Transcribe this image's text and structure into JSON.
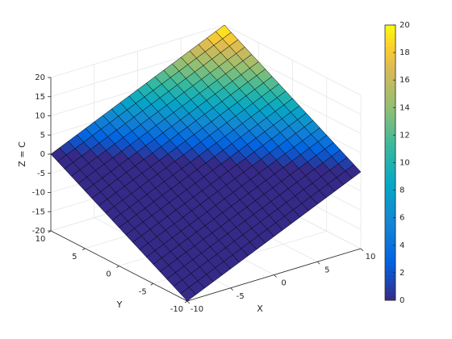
{
  "chart_data": {
    "type": "surface",
    "xlabel": "X",
    "ylabel": "Y",
    "zlabel": "Z = C",
    "x": [
      -10,
      -9,
      -8,
      -7,
      -6,
      -5,
      -4,
      -3,
      -2,
      -1,
      0,
      1,
      2,
      3,
      4,
      5,
      6,
      7,
      8,
      9,
      10
    ],
    "y": [
      -10,
      -9,
      -8,
      -7,
      -6,
      -5,
      -4,
      -3,
      -2,
      -1,
      0,
      1,
      2,
      3,
      4,
      5,
      6,
      7,
      8,
      9,
      10
    ],
    "z": [
      [
        -20,
        -19,
        -18,
        -17,
        -16,
        -15,
        -14,
        -13,
        -12,
        -11,
        -10,
        -9,
        -8,
        -7,
        -6,
        -5,
        -4,
        -3,
        -2,
        -1,
        0
      ],
      [
        -19,
        -18,
        -17,
        -16,
        -15,
        -14,
        -13,
        -12,
        -11,
        -10,
        -9,
        -8,
        -7,
        -6,
        -5,
        -4,
        -3,
        -2,
        -1,
        0,
        1
      ],
      [
        -18,
        -17,
        -16,
        -15,
        -14,
        -13,
        -12,
        -11,
        -10,
        -9,
        -8,
        -7,
        -6,
        -5,
        -4,
        -3,
        -2,
        -1,
        0,
        1,
        2
      ],
      [
        -17,
        -16,
        -15,
        -14,
        -13,
        -12,
        -11,
        -10,
        -9,
        -8,
        -7,
        -6,
        -5,
        -4,
        -3,
        -2,
        -1,
        0,
        1,
        2,
        3
      ],
      [
        -16,
        -15,
        -14,
        -13,
        -12,
        -11,
        -10,
        -9,
        -8,
        -7,
        -6,
        -5,
        -4,
        -3,
        -2,
        -1,
        0,
        1,
        2,
        3,
        4
      ],
      [
        -15,
        -14,
        -13,
        -12,
        -11,
        -10,
        -9,
        -8,
        -7,
        -6,
        -5,
        -4,
        -3,
        -2,
        -1,
        0,
        1,
        2,
        3,
        4,
        5
      ],
      [
        -14,
        -13,
        -12,
        -11,
        -10,
        -9,
        -8,
        -7,
        -6,
        -5,
        -4,
        -3,
        -2,
        -1,
        0,
        1,
        2,
        3,
        4,
        5,
        6
      ],
      [
        -13,
        -12,
        -11,
        -10,
        -9,
        -8,
        -7,
        -6,
        -5,
        -4,
        -3,
        -2,
        -1,
        0,
        1,
        2,
        3,
        4,
        5,
        6,
        7
      ],
      [
        -12,
        -11,
        -10,
        -9,
        -8,
        -7,
        -6,
        -5,
        -4,
        -3,
        -2,
        -1,
        0,
        1,
        2,
        3,
        4,
        5,
        6,
        7,
        8
      ],
      [
        -11,
        -10,
        -9,
        -8,
        -7,
        -6,
        -5,
        -4,
        -3,
        -2,
        -1,
        0,
        1,
        2,
        3,
        4,
        5,
        6,
        7,
        8,
        9
      ],
      [
        -10,
        -9,
        -8,
        -7,
        -6,
        -5,
        -4,
        -3,
        -2,
        -1,
        0,
        1,
        2,
        3,
        4,
        5,
        6,
        7,
        8,
        9,
        10
      ],
      [
        -9,
        -8,
        -7,
        -6,
        -5,
        -4,
        -3,
        -2,
        -1,
        0,
        1,
        2,
        3,
        4,
        5,
        6,
        7,
        8,
        9,
        10,
        11
      ],
      [
        -8,
        -7,
        -6,
        -5,
        -4,
        -3,
        -2,
        -1,
        0,
        1,
        2,
        3,
        4,
        5,
        6,
        7,
        8,
        9,
        10,
        11,
        12
      ],
      [
        -7,
        -6,
        -5,
        -4,
        -3,
        -2,
        -1,
        0,
        1,
        2,
        3,
        4,
        5,
        6,
        7,
        8,
        9,
        10,
        11,
        12,
        13
      ],
      [
        -6,
        -5,
        -4,
        -3,
        -2,
        -1,
        0,
        1,
        2,
        3,
        4,
        5,
        6,
        7,
        8,
        9,
        10,
        11,
        12,
        13,
        14
      ],
      [
        -5,
        -4,
        -3,
        -2,
        -1,
        0,
        1,
        2,
        3,
        4,
        5,
        6,
        7,
        8,
        9,
        10,
        11,
        12,
        13,
        14,
        15
      ],
      [
        -4,
        -3,
        -2,
        -1,
        0,
        1,
        2,
        3,
        4,
        5,
        6,
        7,
        8,
        9,
        10,
        11,
        12,
        13,
        14,
        15,
        16
      ],
      [
        -3,
        -2,
        -1,
        0,
        1,
        2,
        3,
        4,
        5,
        6,
        7,
        8,
        9,
        10,
        11,
        12,
        13,
        14,
        15,
        16,
        17
      ],
      [
        -2,
        -1,
        0,
        1,
        2,
        3,
        4,
        5,
        6,
        7,
        8,
        9,
        10,
        11,
        12,
        13,
        14,
        15,
        16,
        17,
        18
      ],
      [
        -1,
        0,
        1,
        2,
        3,
        4,
        5,
        6,
        7,
        8,
        9,
        10,
        11,
        12,
        13,
        14,
        15,
        16,
        17,
        18,
        19
      ],
      [
        0,
        1,
        2,
        3,
        4,
        5,
        6,
        7,
        8,
        9,
        10,
        11,
        12,
        13,
        14,
        15,
        16,
        17,
        18,
        19,
        20
      ]
    ],
    "xlim": [
      -10,
      10
    ],
    "ylim": [
      -10,
      10
    ],
    "zlim": [
      -20,
      20
    ],
    "xticks": [
      -10,
      -5,
      0,
      5,
      10
    ],
    "yticks": [
      -10,
      -5,
      0,
      5,
      10
    ],
    "zticks": [
      -20,
      -15,
      -10,
      -5,
      0,
      5,
      10,
      15,
      20
    ],
    "clim": [
      0,
      20
    ],
    "cticks": [
      0,
      2,
      4,
      6,
      8,
      10,
      12,
      14,
      16,
      18,
      20
    ],
    "colormap": "parula",
    "grid": true,
    "colorbar": true
  }
}
